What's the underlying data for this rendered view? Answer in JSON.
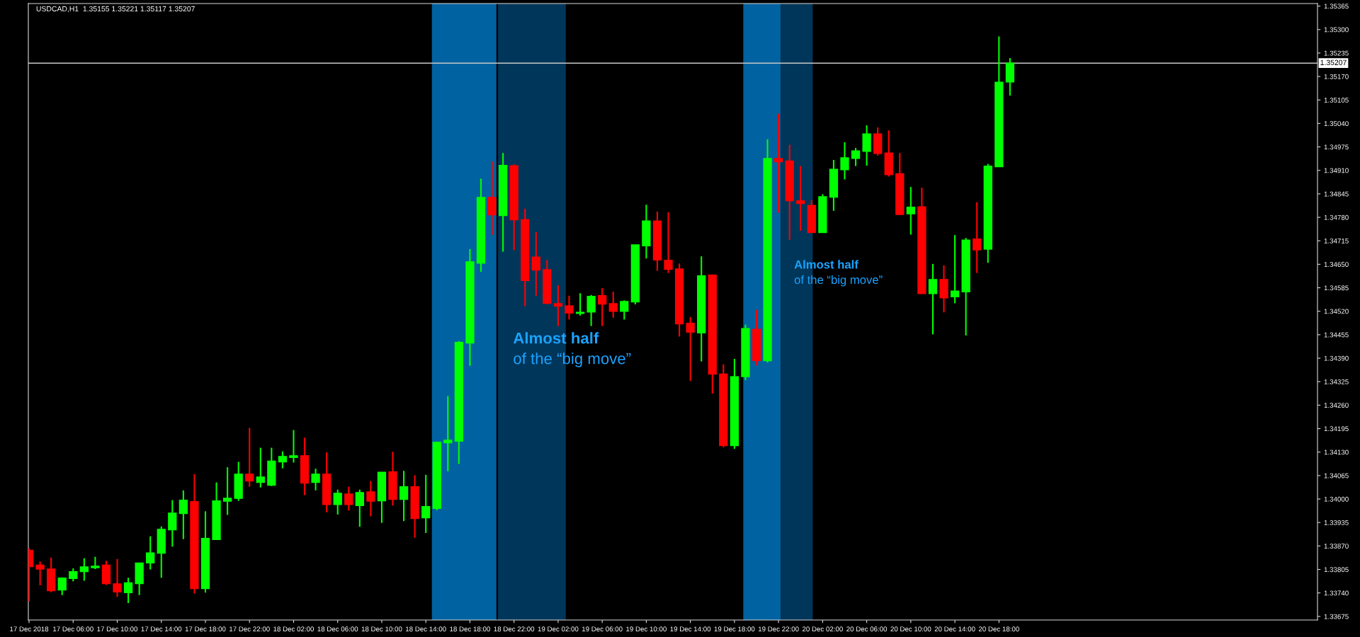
{
  "chart_data": {
    "type": "candlestick",
    "title": "USDCAD,H1  1.35155 1.35221 1.35117 1.35207",
    "x": [
      "2018-12-17T02:00",
      "2018-12-17T03:00",
      "2018-12-17T04:00",
      "2018-12-17T05:00",
      "2018-12-17T06:00",
      "2018-12-17T07:00",
      "2018-12-17T08:00",
      "2018-12-17T09:00",
      "2018-12-17T10:00",
      "2018-12-17T11:00",
      "2018-12-17T12:00",
      "2018-12-17T13:00",
      "2018-12-17T14:00",
      "2018-12-17T15:00",
      "2018-12-17T16:00",
      "2018-12-17T17:00",
      "2018-12-17T18:00",
      "2018-12-17T19:00",
      "2018-12-17T20:00",
      "2018-12-17T21:00",
      "2018-12-17T22:00",
      "2018-12-17T23:00",
      "2018-12-18T00:00",
      "2018-12-18T01:00",
      "2018-12-18T02:00",
      "2018-12-18T03:00",
      "2018-12-18T04:00",
      "2018-12-18T05:00",
      "2018-12-18T06:00",
      "2018-12-18T07:00",
      "2018-12-18T08:00",
      "2018-12-18T09:00",
      "2018-12-18T10:00",
      "2018-12-18T11:00",
      "2018-12-18T12:00",
      "2018-12-18T13:00",
      "2018-12-18T14:00",
      "2018-12-18T15:00",
      "2018-12-18T16:00",
      "2018-12-18T17:00",
      "2018-12-18T18:00",
      "2018-12-18T19:00",
      "2018-12-18T20:00",
      "2018-12-18T21:00",
      "2018-12-18T22:00",
      "2018-12-18T23:00",
      "2018-12-19T00:00",
      "2018-12-19T01:00",
      "2018-12-19T02:00",
      "2018-12-19T03:00",
      "2018-12-19T04:00",
      "2018-12-19T05:00",
      "2018-12-19T06:00",
      "2018-12-19T07:00",
      "2018-12-19T08:00",
      "2018-12-19T09:00",
      "2018-12-19T10:00",
      "2018-12-19T11:00",
      "2018-12-19T12:00",
      "2018-12-19T13:00",
      "2018-12-19T14:00",
      "2018-12-19T15:00",
      "2018-12-19T16:00",
      "2018-12-19T17:00",
      "2018-12-19T18:00",
      "2018-12-19T19:00",
      "2018-12-19T20:00",
      "2018-12-19T21:00",
      "2018-12-19T22:00",
      "2018-12-19T23:00",
      "2018-12-20T00:00",
      "2018-12-20T01:00",
      "2018-12-20T02:00",
      "2018-12-20T03:00",
      "2018-12-20T04:00",
      "2018-12-20T05:00",
      "2018-12-20T06:00",
      "2018-12-20T07:00",
      "2018-12-20T08:00",
      "2018-12-20T09:00",
      "2018-12-20T10:00",
      "2018-12-20T11:00",
      "2018-12-20T12:00",
      "2018-12-20T13:00",
      "2018-12-20T14:00",
      "2018-12-20T15:00",
      "2018-12-20T16:00",
      "2018-12-20T17:00",
      "2018-12-20T18:00",
      "2018-12-20T19:00"
    ],
    "ohlc": [
      [
        1.33858,
        1.33864,
        1.33717,
        1.33813
      ],
      [
        1.33817,
        1.33827,
        1.33761,
        1.33806
      ],
      [
        1.33806,
        1.33838,
        1.33742,
        1.33746
      ],
      [
        1.33748,
        1.33783,
        1.33734,
        1.33781
      ],
      [
        1.3378,
        1.33808,
        1.33772,
        1.33799
      ],
      [
        1.33799,
        1.33836,
        1.33774,
        1.33812
      ],
      [
        1.3381,
        1.3384,
        1.33806,
        1.33814
      ],
      [
        1.33817,
        1.33829,
        1.33762,
        1.33766
      ],
      [
        1.33765,
        1.33834,
        1.33729,
        1.33743
      ],
      [
        1.33741,
        1.33782,
        1.33712,
        1.33768
      ],
      [
        1.33766,
        1.33823,
        1.33734,
        1.33823
      ],
      [
        1.33823,
        1.33897,
        1.33805,
        1.33851
      ],
      [
        1.3385,
        1.33924,
        1.33782,
        1.33916
      ],
      [
        1.33915,
        1.33997,
        1.33868,
        1.33961
      ],
      [
        1.3396,
        1.34024,
        1.33889,
        1.33997
      ],
      [
        1.33993,
        1.34069,
        1.33738,
        1.33752
      ],
      [
        1.33752,
        1.33966,
        1.33741,
        1.33891
      ],
      [
        1.33888,
        1.34046,
        1.33888,
        1.33995
      ],
      [
        1.33994,
        1.34088,
        1.33956,
        1.34002
      ],
      [
        1.34002,
        1.34103,
        1.33995,
        1.34069
      ],
      [
        1.34069,
        1.34197,
        1.34034,
        1.3405
      ],
      [
        1.34046,
        1.34142,
        1.34032,
        1.34061
      ],
      [
        1.34038,
        1.34142,
        1.34036,
        1.34105
      ],
      [
        1.34103,
        1.34132,
        1.34085,
        1.34118
      ],
      [
        1.34115,
        1.34191,
        1.34101,
        1.3412
      ],
      [
        1.3412,
        1.3417,
        1.34011,
        1.34044
      ],
      [
        1.34046,
        1.34084,
        1.34024,
        1.34069
      ],
      [
        1.34069,
        1.34129,
        1.33963,
        1.33985
      ],
      [
        1.33985,
        1.34026,
        1.33957,
        1.34016
      ],
      [
        1.34014,
        1.34034,
        1.33968,
        1.33985
      ],
      [
        1.33982,
        1.34026,
        1.33923,
        1.34018
      ],
      [
        1.3402,
        1.3405,
        1.33952,
        1.33994
      ],
      [
        1.33995,
        1.34075,
        1.33934,
        1.34074
      ],
      [
        1.34075,
        1.34131,
        1.33982,
        1.33999
      ],
      [
        1.33999,
        1.34078,
        1.33939,
        1.34034
      ],
      [
        1.34034,
        1.34066,
        1.33893,
        1.33946
      ],
      [
        1.33948,
        1.34067,
        1.33906,
        1.33979
      ],
      [
        1.33974,
        1.34159,
        1.33969,
        1.34157
      ],
      [
        1.34156,
        1.34285,
        1.34077,
        1.34163
      ],
      [
        1.3416,
        1.34437,
        1.34097,
        1.34434
      ],
      [
        1.34432,
        1.34692,
        1.34369,
        1.34657
      ],
      [
        1.34653,
        1.34887,
        1.34629,
        1.34835
      ],
      [
        1.34835,
        1.34935,
        1.34731,
        1.34787
      ],
      [
        1.34785,
        1.34958,
        1.34685,
        1.34924
      ],
      [
        1.34923,
        1.34927,
        1.34689,
        1.34773
      ],
      [
        1.34774,
        1.34804,
        1.34534,
        1.34605
      ],
      [
        1.3467,
        1.34739,
        1.34563,
        1.34634
      ],
      [
        1.34635,
        1.34662,
        1.34539,
        1.34542
      ],
      [
        1.34541,
        1.34592,
        1.34479,
        1.34534
      ],
      [
        1.34535,
        1.34563,
        1.34497,
        1.34515
      ],
      [
        1.34514,
        1.3457,
        1.34508,
        1.34517
      ],
      [
        1.34518,
        1.34565,
        1.34479,
        1.34561
      ],
      [
        1.34563,
        1.34584,
        1.34479,
        1.3454
      ],
      [
        1.34541,
        1.34574,
        1.34502,
        1.3452
      ],
      [
        1.3452,
        1.3455,
        1.34497,
        1.34547
      ],
      [
        1.34546,
        1.34704,
        1.34539,
        1.34704
      ],
      [
        1.34701,
        1.34815,
        1.34666,
        1.3477
      ],
      [
        1.3477,
        1.34796,
        1.34632,
        1.34662
      ],
      [
        1.34661,
        1.34794,
        1.34626,
        1.34636
      ],
      [
        1.34637,
        1.34652,
        1.3445,
        1.34485
      ],
      [
        1.34487,
        1.34504,
        1.34327,
        1.34462
      ],
      [
        1.3446,
        1.34672,
        1.34381,
        1.34618
      ],
      [
        1.3462,
        1.34622,
        1.34292,
        1.34346
      ],
      [
        1.34346,
        1.34373,
        1.34143,
        1.34148
      ],
      [
        1.34148,
        1.34388,
        1.34139,
        1.34339
      ],
      [
        1.34339,
        1.34483,
        1.34329,
        1.34472
      ],
      [
        1.3447,
        1.34524,
        1.3437,
        1.34383
      ],
      [
        1.34383,
        1.34996,
        1.34378,
        1.34943
      ],
      [
        1.34943,
        1.35067,
        1.34793,
        1.34934
      ],
      [
        1.34936,
        1.34981,
        1.34718,
        1.34826
      ],
      [
        1.34826,
        1.34922,
        1.34743,
        1.34818
      ],
      [
        1.34813,
        1.34828,
        1.34738,
        1.34738
      ],
      [
        1.34738,
        1.34844,
        1.34738,
        1.34837
      ],
      [
        1.34836,
        1.34939,
        1.34798,
        1.34913
      ],
      [
        1.34912,
        1.34988,
        1.34885,
        1.34945
      ],
      [
        1.34943,
        1.34972,
        1.34922,
        1.34964
      ],
      [
        1.34963,
        1.35035,
        1.34923,
        1.35011
      ],
      [
        1.35011,
        1.35029,
        1.34951,
        1.34957
      ],
      [
        1.34958,
        1.35021,
        1.34893,
        1.34898
      ],
      [
        1.34901,
        1.34958,
        1.34787,
        1.34788
      ],
      [
        1.3479,
        1.34864,
        1.34732,
        1.34808
      ],
      [
        1.34809,
        1.34862,
        1.34569,
        1.34569
      ],
      [
        1.34569,
        1.34651,
        1.34456,
        1.34608
      ],
      [
        1.34608,
        1.34647,
        1.34517,
        1.34557
      ],
      [
        1.3456,
        1.34731,
        1.34542,
        1.34576
      ],
      [
        1.34574,
        1.34723,
        1.34453,
        1.34717
      ],
      [
        1.3472,
        1.34822,
        1.34626,
        1.3469
      ],
      [
        1.34692,
        1.34928,
        1.34654,
        1.34922
      ],
      [
        1.3492,
        1.35281,
        1.3492,
        1.35154
      ],
      [
        1.35155,
        1.35221,
        1.35117,
        1.35207
      ]
    ],
    "colors": [
      "#ff0000",
      "#ff0000",
      "#ff0000",
      "#00ff00",
      "#00ff00",
      "#00ff00",
      "#00ff00",
      "#ff0000",
      "#ff0000",
      "#00ff00",
      "#00ff00",
      "#00ff00",
      "#00ff00",
      "#00ff00",
      "#00ff00",
      "#ff0000",
      "#00ff00",
      "#00ff00",
      "#00ff00",
      "#00ff00",
      "#ff0000",
      "#00ff00",
      "#00ff00",
      "#00ff00",
      "#00ff00",
      "#ff0000",
      "#00ff00",
      "#ff0000",
      "#00ff00",
      "#ff0000",
      "#00ff00",
      "#ff0000",
      "#00ff00",
      "#ff0000",
      "#00ff00",
      "#ff0000",
      "#00ff00",
      "#00ff00",
      "#00ff00",
      "#00ff00",
      "#00ff00",
      "#00ff00",
      "#ff0000",
      "#00ff00",
      "#ff0000",
      "#ff0000",
      "#ff0000",
      "#ff0000",
      "#ff0000",
      "#ff0000",
      "#00ff00",
      "#00ff00",
      "#ff0000",
      "#ff0000",
      "#00ff00",
      "#00ff00",
      "#00ff00",
      "#ff0000",
      "#ff0000",
      "#ff0000",
      "#ff0000",
      "#00ff00",
      "#ff0000",
      "#ff0000",
      "#00ff00",
      "#00ff00",
      "#ff0000",
      "#00ff00",
      "#ff0000",
      "#ff0000",
      "#ff0000",
      "#ff0000",
      "#00ff00",
      "#00ff00",
      "#00ff00",
      "#00ff00",
      "#00ff00",
      "#ff0000",
      "#ff0000",
      "#ff0000",
      "#00ff00",
      "#ff0000",
      "#00ff00",
      "#ff0000",
      "#00ff00",
      "#00ff00",
      "#ff0000",
      "#00ff00",
      "#00ff00",
      "#00ff00"
    ],
    "xlim": [
      "2018-12-17T01:56",
      "2018-12-21T22:54"
    ],
    "xticks": [
      {
        "value": "2018-12-17T02:00",
        "label": "17 Dec 2018"
      },
      {
        "value": "2018-12-17T06:00",
        "label": "17 Dec 06:00"
      },
      {
        "value": "2018-12-17T10:00",
        "label": "17 Dec 10:00"
      },
      {
        "value": "2018-12-17T14:00",
        "label": "17 Dec 14:00"
      },
      {
        "value": "2018-12-17T18:00",
        "label": "17 Dec 18:00"
      },
      {
        "value": "2018-12-17T22:00",
        "label": "17 Dec 22:00"
      },
      {
        "value": "2018-12-18T02:00",
        "label": "18 Dec 02:00"
      },
      {
        "value": "2018-12-18T06:00",
        "label": "18 Dec 06:00"
      },
      {
        "value": "2018-12-18T10:00",
        "label": "18 Dec 10:00"
      },
      {
        "value": "2018-12-18T14:00",
        "label": "18 Dec 14:00"
      },
      {
        "value": "2018-12-18T18:00",
        "label": "18 Dec 18:00"
      },
      {
        "value": "2018-12-18T22:00",
        "label": "18 Dec 22:00"
      },
      {
        "value": "2018-12-19T02:00",
        "label": "19 Dec 02:00"
      },
      {
        "value": "2018-12-19T06:00",
        "label": "19 Dec 06:00"
      },
      {
        "value": "2018-12-19T10:00",
        "label": "19 Dec 10:00"
      },
      {
        "value": "2018-12-19T14:00",
        "label": "19 Dec 14:00"
      },
      {
        "value": "2018-12-19T18:00",
        "label": "19 Dec 18:00"
      },
      {
        "value": "2018-12-19T22:00",
        "label": "19 Dec 22:00"
      },
      {
        "value": "2018-12-20T02:00",
        "label": "20 Dec 02:00"
      },
      {
        "value": "2018-12-20T06:00",
        "label": "20 Dec 06:00"
      },
      {
        "value": "2018-12-20T10:00",
        "label": "20 Dec 10:00"
      },
      {
        "value": "2018-12-20T14:00",
        "label": "20 Dec 14:00"
      },
      {
        "value": "2018-12-20T18:00",
        "label": "20 Dec 18:00"
      }
    ],
    "ylim": [
      1.33665,
      1.35372
    ],
    "yticks": [
      1.33675,
      {
        "value": 1.3374,
        "label": "1.33740"
      },
      1.33805,
      {
        "value": 1.3387,
        "label": "1.33870"
      },
      1.33935,
      {
        "value": 1.34,
        "label": "1.34000"
      },
      1.34065,
      {
        "value": 1.3413,
        "label": "1.34130"
      },
      1.34195,
      {
        "value": 1.3426,
        "label": "1.34260"
      },
      1.34325,
      {
        "value": 1.3439,
        "label": "1.34390"
      },
      1.34455,
      {
        "value": 1.3452,
        "label": "1.34520"
      },
      1.34585,
      {
        "value": 1.3465,
        "label": "1.34650"
      },
      1.34715,
      {
        "value": 1.3478,
        "label": "1.34780"
      },
      1.34845,
      {
        "value": 1.3491,
        "label": "1.34910"
      },
      1.34975,
      {
        "value": 1.3504,
        "label": "1.35040"
      },
      1.35105,
      {
        "value": 1.3517,
        "label": "1.35170"
      },
      1.35235,
      {
        "value": 1.353,
        "label": "1.35300"
      },
      1.35365
    ],
    "ref_lines": [
      {
        "axis": "y",
        "value": 1.35207,
        "label": "1.35207",
        "color": "#c8c8c8"
      }
    ],
    "bands": [
      {
        "axis": "x",
        "from": "2018-12-18T14:33",
        "to": "2018-12-18T20:24",
        "color": "#0062a0"
      },
      {
        "axis": "x",
        "from": "2018-12-18T20:33",
        "to": "2018-12-19T02:42",
        "color": "#00365a"
      },
      {
        "axis": "x",
        "from": "2018-12-19T18:48",
        "to": "2018-12-19T22:12",
        "color": "#0062a0"
      },
      {
        "axis": "x",
        "from": "2018-12-19T22:12",
        "to": "2018-12-20T01:06",
        "color": "#00365a"
      }
    ],
    "annotations": [
      "Almost half\nof the “big move”",
      "Almost half\nof the “big move”"
    ]
  }
}
